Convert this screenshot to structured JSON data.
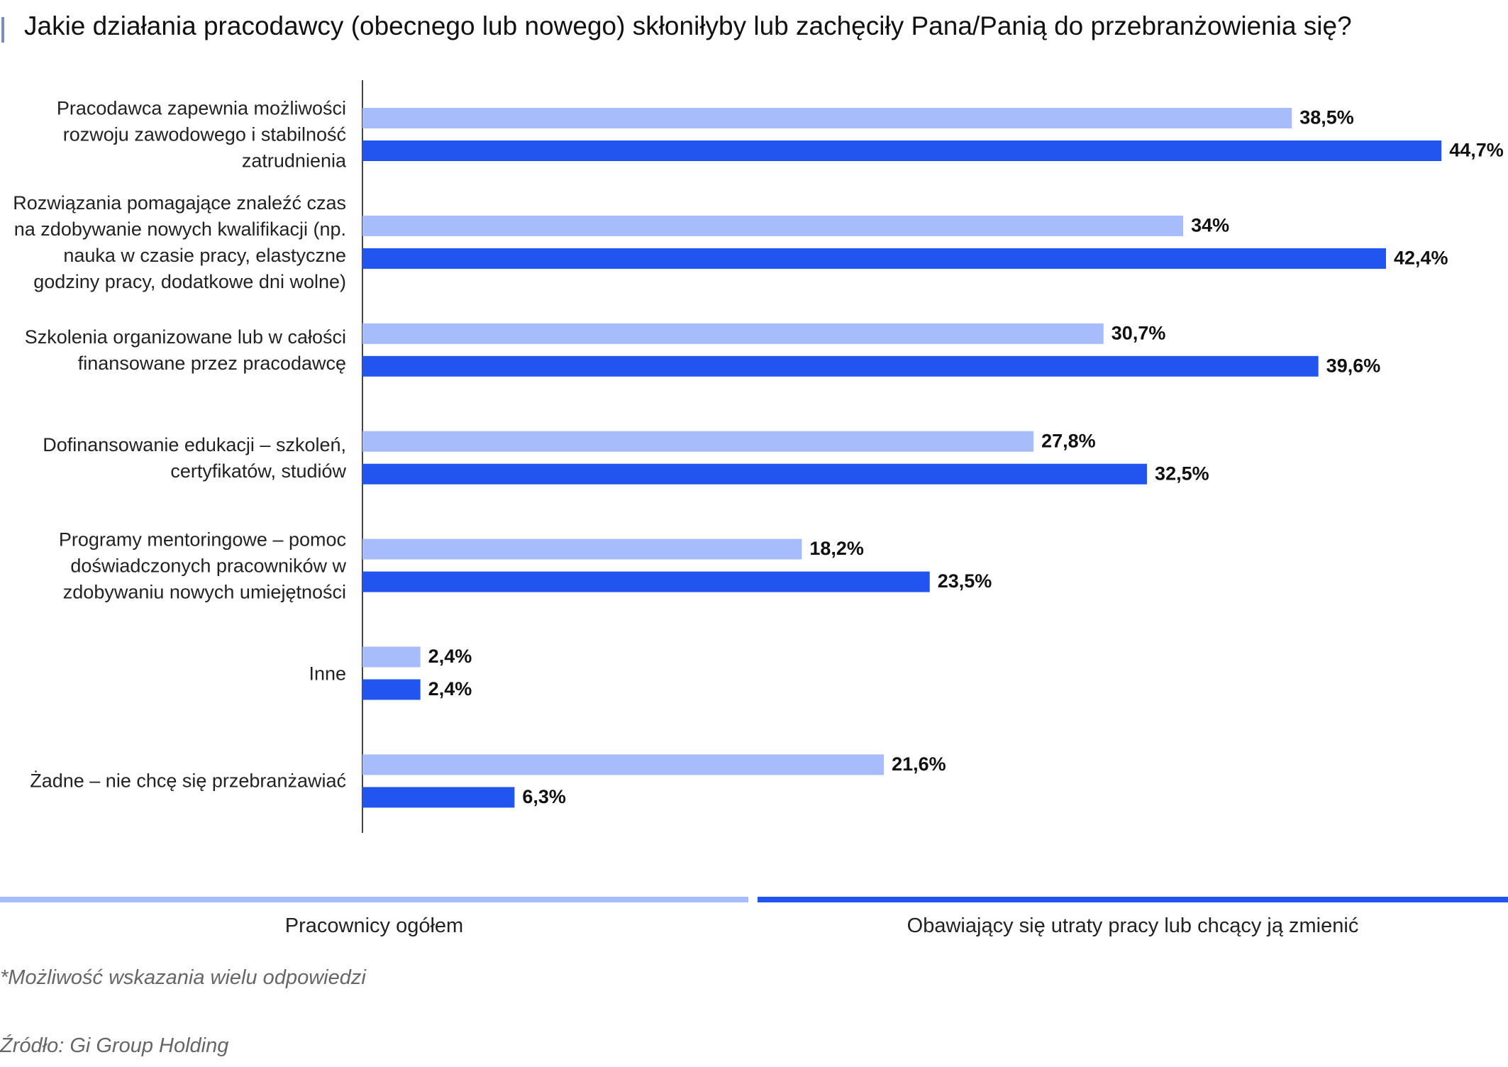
{
  "chart_data": {
    "type": "bar",
    "orientation": "horizontal",
    "title": "Jakie działania pracodawcy (obecnego lub nowego) skłoniłyby lub zachęciły Pana/Panią do przebranżowienia się?",
    "categories": [
      "Pracodawca zapewnia możliwości rozwoju zawodowego i stabilność zatrudnienia",
      "Rozwiązania pomagające znaleźć czas na zdobywanie nowych kwalifikacji (np. nauka w czasie pracy, elastyczne godziny pracy, dodatkowe dni wolne)",
      "Szkolenia organizowane lub w całości finansowane przez pracodawcę",
      "Dofinansowanie edukacji – szkoleń, certyfikatów, studiów",
      "Programy mentoringowe – pomoc doświadczonych pracowników w zdobywaniu nowych umiejętności",
      "Inne",
      "Żadne – nie chcę się przebranżawiać"
    ],
    "series": [
      {
        "name": "Pracownicy ogółem",
        "color": "#a7bcfb",
        "values": [
          38.5,
          34,
          30.7,
          27.8,
          18.2,
          2.4,
          21.6
        ],
        "value_labels": [
          "38,5%",
          "34%",
          "30,7%",
          "27,8%",
          "18,2%",
          "2,4%",
          "21,6%"
        ]
      },
      {
        "name": "Obawiający się utraty pracy lub chcący ją zmienić",
        "color": "#2255f0",
        "values": [
          44.7,
          42.4,
          39.6,
          32.5,
          23.5,
          2.4,
          6.3
        ],
        "value_labels": [
          "44,7%",
          "42,4%",
          "39,6%",
          "32,5%",
          "23,5%",
          "2,4%",
          "6,3%"
        ]
      }
    ],
    "note": "*Możliwość wskazania wielu odpowiedzi",
    "source": "Źródło: Gi Group Holding"
  }
}
